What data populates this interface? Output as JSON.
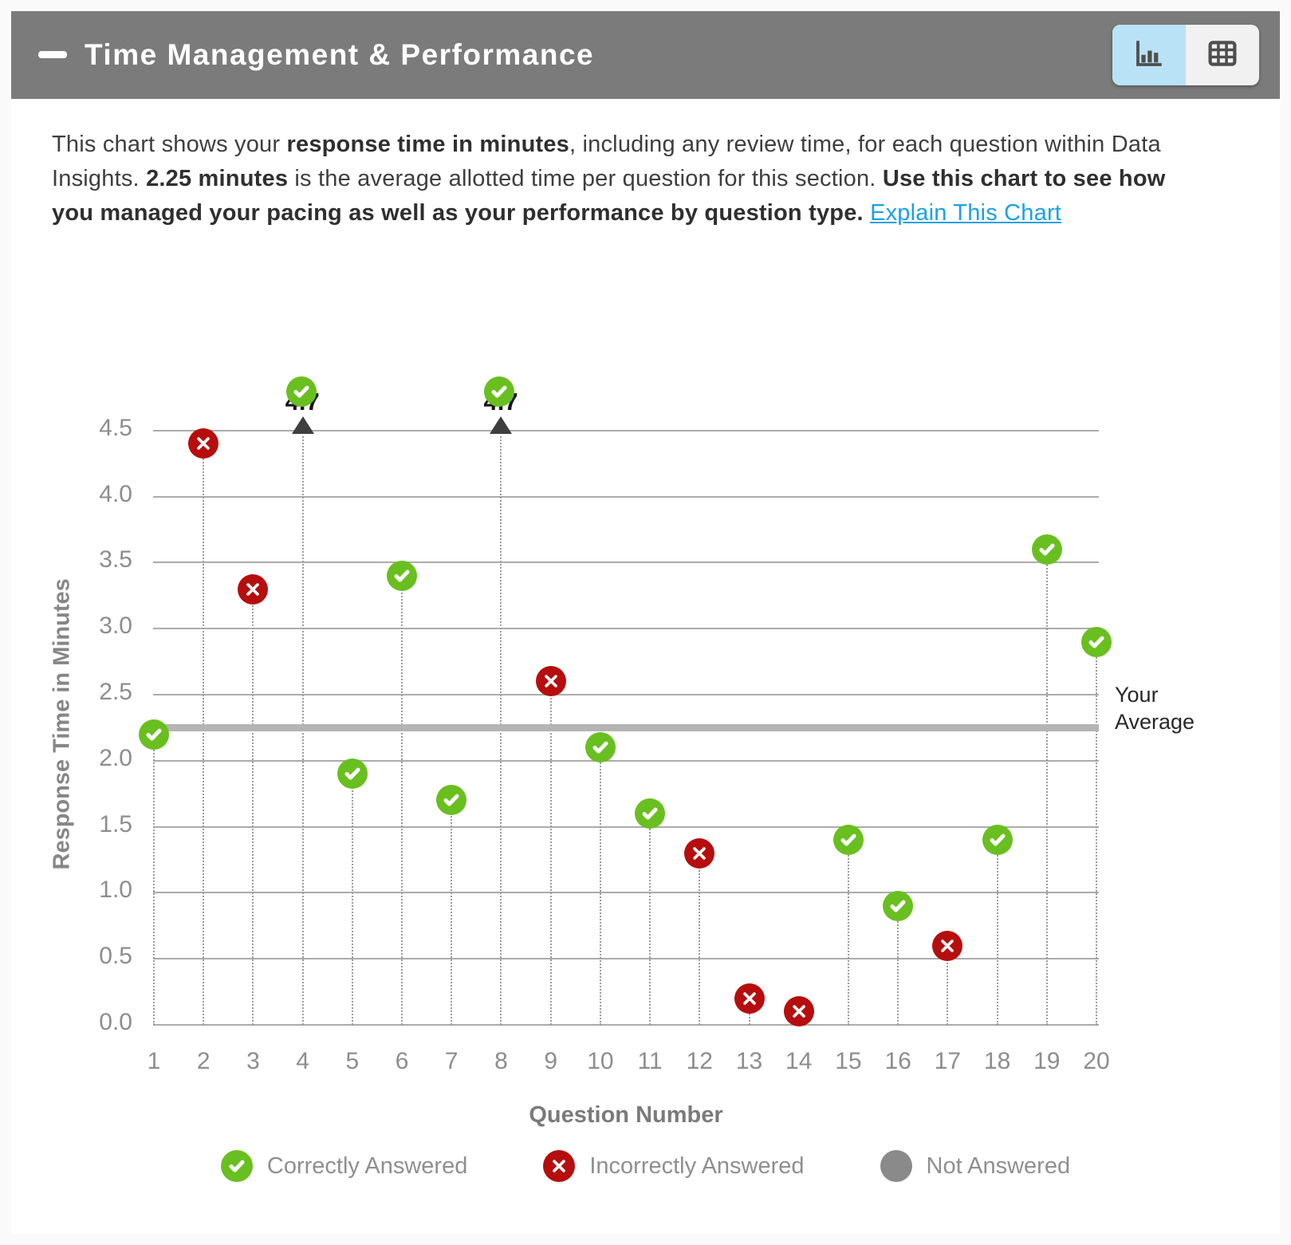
{
  "header": {
    "title": "Time Management & Performance",
    "collapse_icon": "minus",
    "view_toggle": {
      "chart_button": "chart-view",
      "table_button": "table-view",
      "active": "chart-view",
      "active_color": "#b9e2f7"
    }
  },
  "description": {
    "segments": [
      {
        "text": "This chart shows your ",
        "bold": false
      },
      {
        "text": "response time in minutes",
        "bold": true
      },
      {
        "text": ", including any review time, for each question within Data Insights. ",
        "bold": false
      },
      {
        "text": "2.25 minutes",
        "bold": true
      },
      {
        "text": " is the average allotted time per question for this section. ",
        "bold": false
      },
      {
        "text": "Use this chart to see how you managed your pacing as well as your performance by question type.",
        "bold": true
      },
      {
        "text": " ",
        "bold": false
      },
      {
        "text": "Explain This Chart",
        "bold": false,
        "link": true
      }
    ]
  },
  "chart_data": {
    "type": "scatter",
    "xlabel": "Question Number",
    "ylabel": "Response Time in Minutes",
    "xlim": [
      1,
      20
    ],
    "ylim": [
      0.0,
      4.5
    ],
    "y_tick_step": 0.5,
    "grid": true,
    "clip_max": 4.5,
    "average": {
      "value": 2.25,
      "label": "Your Average"
    },
    "x": [
      1,
      2,
      3,
      4,
      5,
      6,
      7,
      8,
      9,
      10,
      11,
      12,
      13,
      14,
      15,
      16,
      17,
      18,
      19,
      20
    ],
    "points": [
      {
        "question": 1,
        "minutes": 2.2,
        "result": "correct"
      },
      {
        "question": 2,
        "minutes": 4.4,
        "result": "incorrect"
      },
      {
        "question": 3,
        "minutes": 3.3,
        "result": "incorrect"
      },
      {
        "question": 4,
        "minutes": 4.7,
        "result": "correct",
        "offscale": true,
        "label": "4.7"
      },
      {
        "question": 5,
        "minutes": 1.9,
        "result": "correct"
      },
      {
        "question": 6,
        "minutes": 3.4,
        "result": "correct"
      },
      {
        "question": 7,
        "minutes": 1.7,
        "result": "correct"
      },
      {
        "question": 8,
        "minutes": 4.7,
        "result": "correct",
        "offscale": true,
        "label": "4.7"
      },
      {
        "question": 9,
        "minutes": 2.6,
        "result": "incorrect"
      },
      {
        "question": 10,
        "minutes": 2.1,
        "result": "correct"
      },
      {
        "question": 11,
        "minutes": 1.6,
        "result": "correct"
      },
      {
        "question": 12,
        "minutes": 1.3,
        "result": "incorrect"
      },
      {
        "question": 13,
        "minutes": 0.2,
        "result": "incorrect"
      },
      {
        "question": 14,
        "minutes": 0.1,
        "result": "incorrect"
      },
      {
        "question": 15,
        "minutes": 1.4,
        "result": "correct"
      },
      {
        "question": 16,
        "minutes": 0.9,
        "result": "correct"
      },
      {
        "question": 17,
        "minutes": 0.6,
        "result": "incorrect"
      },
      {
        "question": 18,
        "minutes": 1.4,
        "result": "correct"
      },
      {
        "question": 19,
        "minutes": 3.6,
        "result": "correct"
      },
      {
        "question": 20,
        "minutes": 2.9,
        "result": "correct"
      }
    ]
  },
  "legend": {
    "items": [
      {
        "label": "Correctly Answered",
        "status": "correct",
        "color": "#69bf1f"
      },
      {
        "label": "Incorrectly Answered",
        "status": "incorrect",
        "color": "#b60e0e"
      },
      {
        "label": "Not Answered",
        "status": "notanswered",
        "color": "#8a8a8a"
      }
    ]
  },
  "colors": {
    "header_bg": "#7b7b7b",
    "correct": "#69bf1f",
    "incorrect": "#b60e0e",
    "not_answered": "#8a8a8a",
    "average_line": "#b4b4b4",
    "gridline": "#ababab",
    "link": "#1ba1e4",
    "toggle_active_bg": "#b9e2f7"
  }
}
